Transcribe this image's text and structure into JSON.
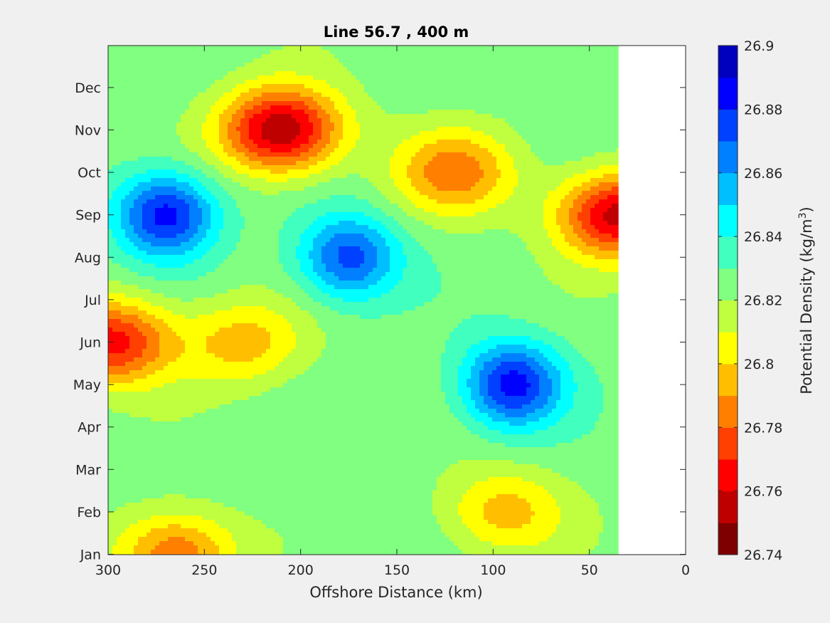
{
  "chart_data": {
    "type": "heatmap",
    "subtype": "filled-contour",
    "title": "Line 56.7 , 400 m",
    "xlabel": "Offshore Distance (km)",
    "ylabel": "",
    "xlim": [
      0,
      300
    ],
    "x_reversed": true,
    "x_ticks": [
      "300",
      "250",
      "200",
      "150",
      "100",
      "50",
      "0"
    ],
    "x_tick_values": [
      300,
      250,
      200,
      150,
      100,
      50,
      0
    ],
    "y_ticks": [
      "Jan",
      "Feb",
      "Mar",
      "Apr",
      "May",
      "Jun",
      "Jul",
      "Aug",
      "Sep",
      "Oct",
      "Nov",
      "Dec"
    ],
    "data_x_extent_km": [
      35,
      300
    ],
    "colorbar": {
      "label": "Potential Density (kg/m",
      "label_superscript": "3",
      "label_suffix": ")",
      "range": [
        26.74,
        26.9
      ],
      "tick_labels": [
        "26.9",
        "26.88",
        "26.86",
        "26.84",
        "26.82",
        "26.8",
        "26.78",
        "26.76",
        "26.74"
      ],
      "tick_values": [
        26.9,
        26.88,
        26.86,
        26.84,
        26.82,
        26.8,
        26.78,
        26.76,
        26.74
      ],
      "colors_low_to_high": [
        "#7f0000",
        "#bf0000",
        "#ff0000",
        "#ff4000",
        "#ff8000",
        "#ffbf00",
        "#ffff00",
        "#bfff40",
        "#80ff80",
        "#40ffbf",
        "#00ffff",
        "#00bfff",
        "#0080ff",
        "#0040ff",
        "#0000ff",
        "#0000bf"
      ]
    },
    "features": [
      {
        "kind": "low",
        "x": 210,
        "y": "Nov",
        "value": 26.75
      },
      {
        "kind": "low",
        "x": 35,
        "y": "Sep",
        "value": 26.755
      },
      {
        "kind": "high",
        "x": 270,
        "y": "Sep",
        "value": 26.885
      },
      {
        "kind": "high",
        "x": 90,
        "y": "May",
        "value": 26.885
      },
      {
        "kind": "high",
        "x": 175,
        "y": "Aug",
        "value": 26.875
      },
      {
        "kind": "low",
        "x": 230,
        "y": "Jun",
        "value": 26.795
      },
      {
        "kind": "low",
        "x": 265,
        "y": "Jan",
        "value": 26.78
      },
      {
        "kind": "low",
        "x": 95,
        "y": "Feb",
        "value": 26.795
      },
      {
        "kind": "low",
        "x": 120,
        "y": "Oct",
        "value": 26.785
      },
      {
        "kind": "low",
        "x": 298,
        "y": "Jun",
        "value": 26.765
      }
    ]
  }
}
